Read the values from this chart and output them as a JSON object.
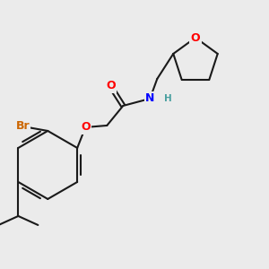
{
  "bg_color": "#ebebeb",
  "bond_color": "#1a1a1a",
  "bond_width": 1.5,
  "atom_colors": {
    "O": "#ff0000",
    "N": "#0000ff",
    "Br": "#cc6600",
    "H": "#4aa0a0",
    "C": "#1a1a1a"
  },
  "font_size": 9,
  "font_size_small": 7.5
}
